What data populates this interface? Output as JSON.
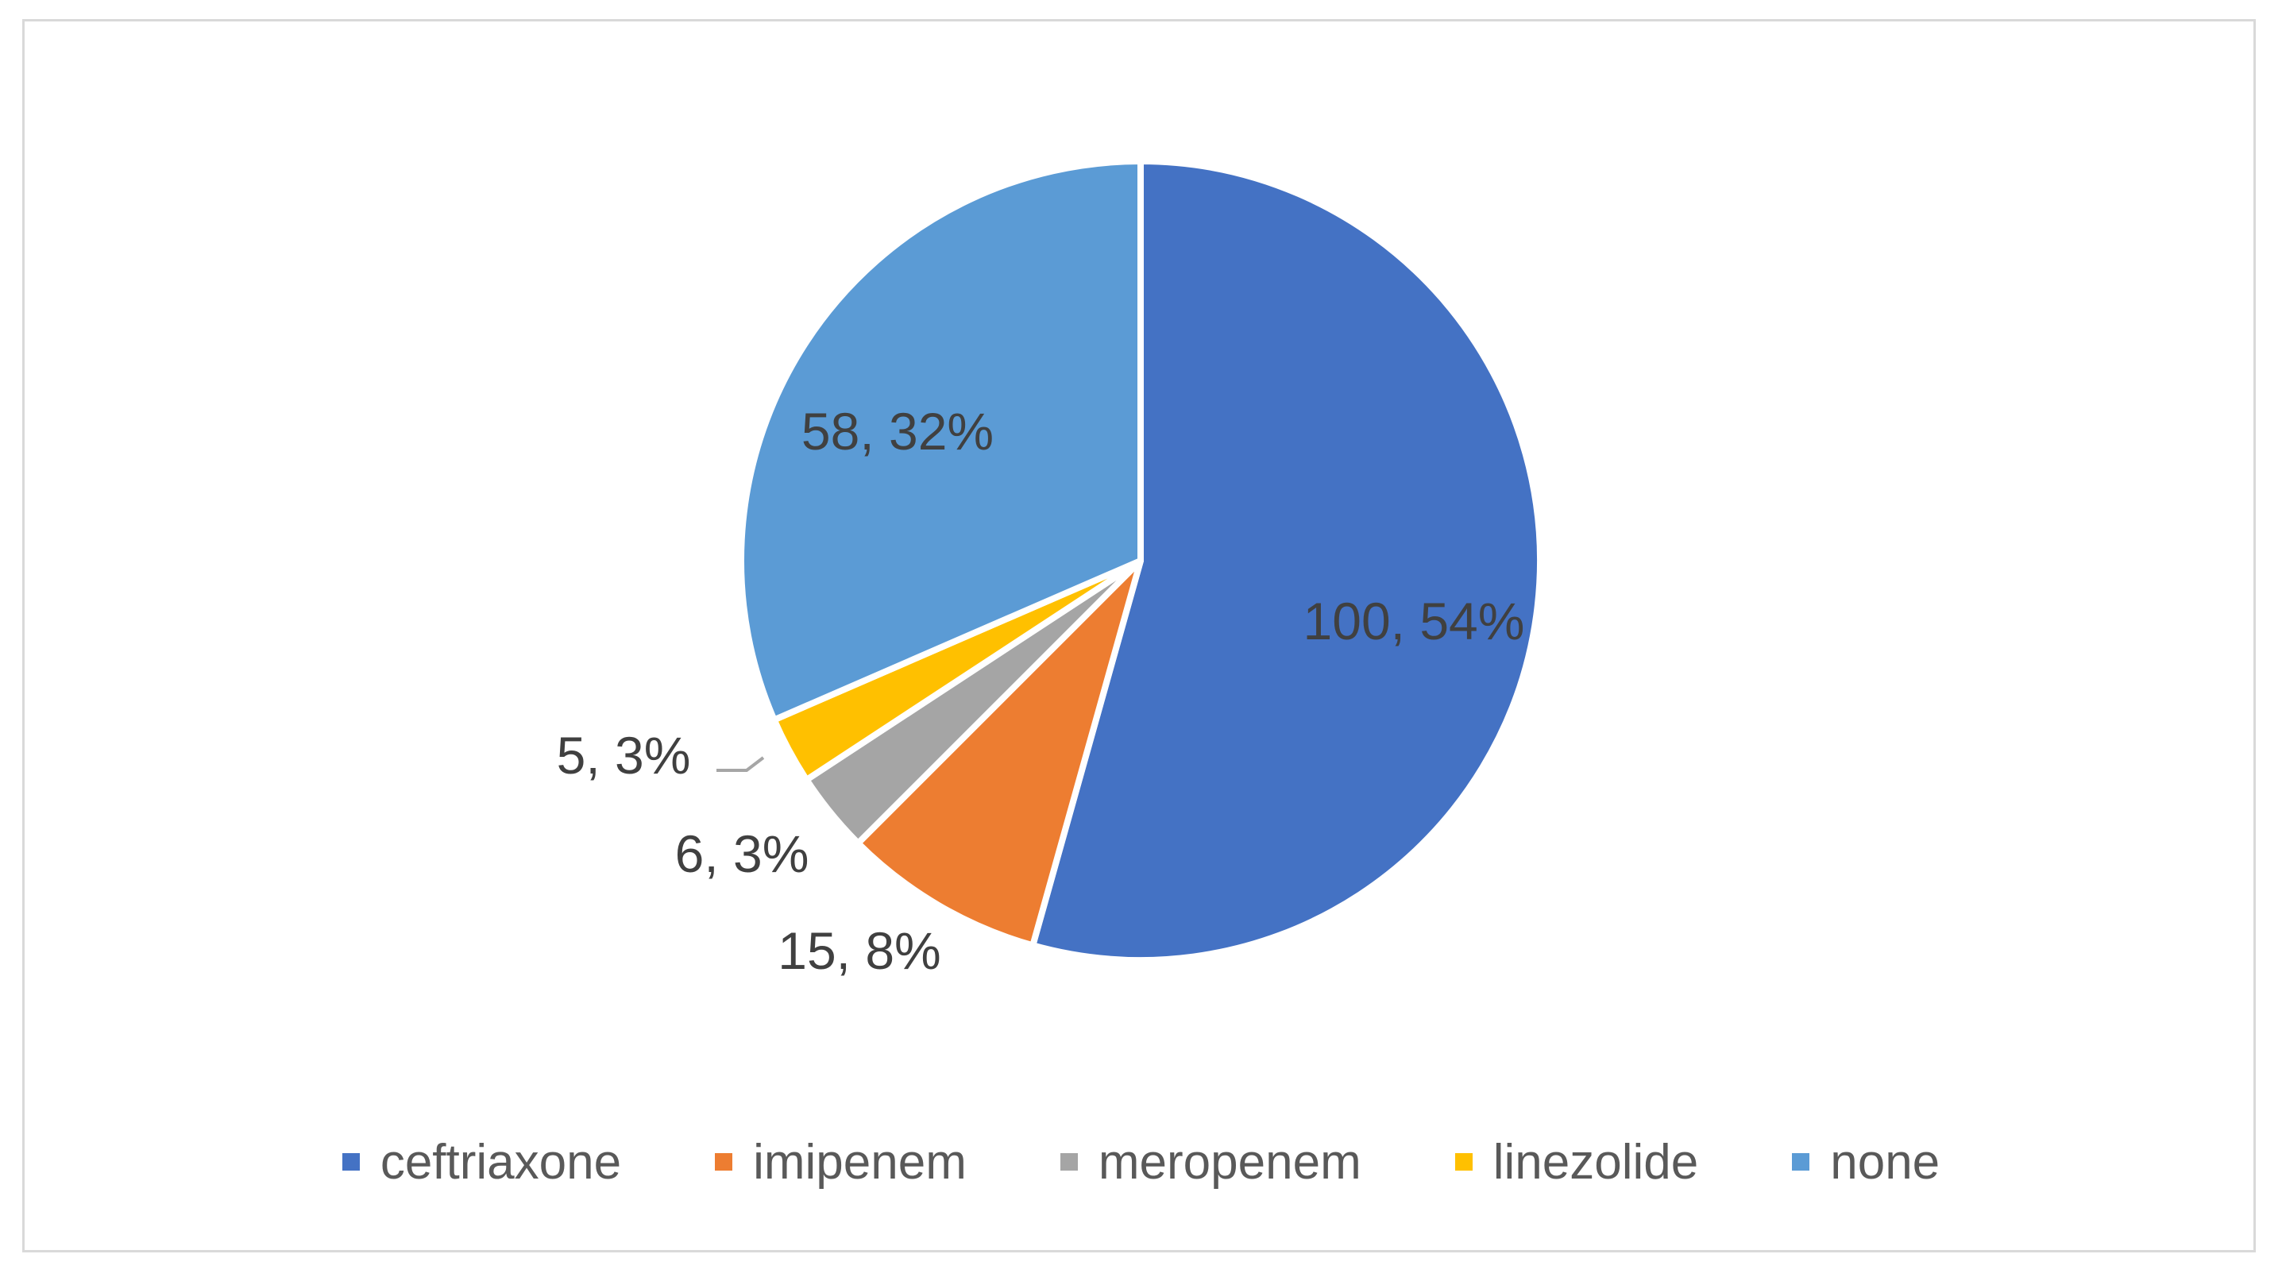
{
  "chart_data": {
    "type": "pie",
    "start_angle_deg": 0,
    "direction": "clockwise",
    "slices": [
      {
        "name": "ceftriaxone",
        "value": 100,
        "percent": 54,
        "label": "100, 54%",
        "color": "#4472C4"
      },
      {
        "name": "imipenem",
        "value": 15,
        "percent": 8,
        "label": "15, 8%",
        "color": "#ED7D31"
      },
      {
        "name": "meropenem",
        "value": 6,
        "percent": 3,
        "label": "6, 3%",
        "color": "#A5A5A5"
      },
      {
        "name": "linezolide",
        "value": 5,
        "percent": 3,
        "label": "5, 3%",
        "color": "#FFC000"
      },
      {
        "name": "none",
        "value": 58,
        "percent": 32,
        "label": "58, 32%",
        "color": "#5B9BD5"
      }
    ],
    "legend_position": "bottom",
    "title": ""
  }
}
